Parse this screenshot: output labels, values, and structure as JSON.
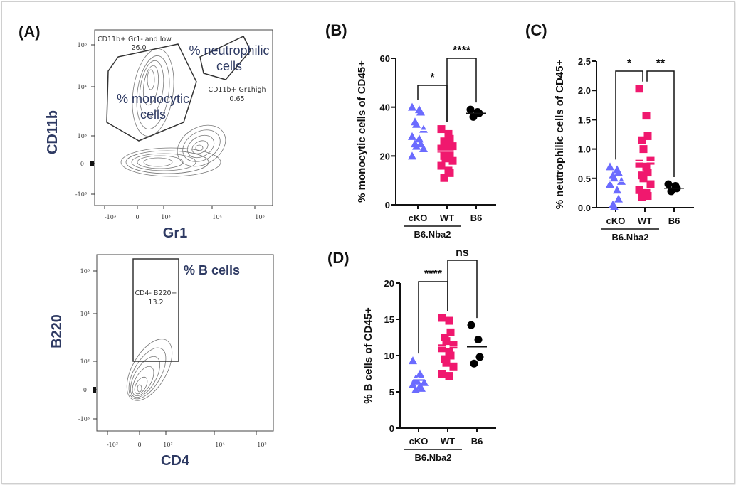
{
  "panels": {
    "A": "(A)",
    "B": "(B)",
    "C": "(C)",
    "D": "(D)"
  },
  "colors": {
    "cKO": "#6b6bff",
    "WT": "#f0186e",
    "B6": "#000000",
    "gate_text": "#2e3a63",
    "contour": "#777777"
  },
  "facs_plots": [
    {
      "id": "cd11b-gr1",
      "x_axis_title": "Gr1",
      "y_axis_title": "CD11b",
      "x_ticks": [
        "-10³",
        "0",
        "10³",
        "10⁴",
        "10⁵"
      ],
      "y_ticks": [
        "10⁵",
        "10⁴",
        "10³",
        "0",
        "-10³"
      ],
      "gates": [
        {
          "name": "CD11b+ Gr1- and low",
          "value": "26.0",
          "annotation": [
            "% monocytic",
            "cells"
          ]
        },
        {
          "name": "CD11b+ Gr1high",
          "value": "0.65",
          "annotation": [
            "% neutrophilic",
            "cells"
          ]
        }
      ]
    },
    {
      "id": "b220-cd4",
      "x_axis_title": "CD4",
      "y_axis_title": "B220",
      "x_ticks": [
        "-10³",
        "0",
        "10³",
        "10⁴",
        "10⁵"
      ],
      "y_ticks": [
        "10⁵",
        "10⁴",
        "10³",
        "0",
        "-10³"
      ],
      "gates": [
        {
          "name": "CD4- B220+",
          "value": "13.2",
          "annotation": [
            "% B cells"
          ]
        }
      ]
    }
  ],
  "chart_data": [
    {
      "panel": "B",
      "type": "scatter",
      "title": "",
      "xlabel": "",
      "ylabel": "% monocytic cells of CD45+",
      "categories": [
        "cKO",
        "WT",
        "B6"
      ],
      "group_label": "B6.Nba2",
      "group_members": [
        "cKO",
        "WT"
      ],
      "ylim": [
        0,
        60
      ],
      "yticks": [
        0,
        20,
        40,
        60
      ],
      "series": [
        {
          "name": "cKO",
          "marker": "triangle",
          "values": [
            40,
            39,
            38,
            34,
            33,
            31,
            28,
            27,
            25,
            25,
            24,
            23,
            20
          ],
          "mean": 30.5
        },
        {
          "name": "WT",
          "marker": "square",
          "values": [
            31,
            29,
            27,
            26,
            25,
            24,
            23,
            22,
            21,
            20,
            19,
            18,
            16,
            14,
            13,
            11
          ],
          "mean": 22
        },
        {
          "name": "B6",
          "marker": "circle",
          "values": [
            39,
            38,
            37.5,
            36
          ],
          "mean": 37.5
        }
      ],
      "comparisons": [
        {
          "from": "cKO",
          "to": "WT",
          "label": "*"
        },
        {
          "from": "WT",
          "to": "B6",
          "label": "****"
        }
      ]
    },
    {
      "panel": "C",
      "type": "scatter",
      "title": "",
      "xlabel": "",
      "ylabel": "% neutrophilic cells of CD45+",
      "categories": [
        "cKO",
        "WT",
        "B6"
      ],
      "group_label": "B6.Nba2",
      "group_members": [
        "cKO",
        "WT"
      ],
      "ylim": [
        0,
        2.5
      ],
      "yticks": [
        "0.0",
        "0.5",
        "1.0",
        "1.5",
        "2.0",
        "2.5"
      ],
      "series": [
        {
          "name": "cKO",
          "marker": "triangle",
          "values": [
            0.7,
            0.65,
            0.6,
            0.55,
            0.5,
            0.45,
            0.4,
            0.3,
            0.15,
            0.05,
            0.02
          ],
          "mean": 0.45
        },
        {
          "name": "WT",
          "marker": "square",
          "values": [
            2.03,
            1.57,
            1.22,
            1.15,
            1.0,
            0.8,
            0.75,
            0.7,
            0.6,
            0.55,
            0.5,
            0.4,
            0.3,
            0.25,
            0.2,
            0.18
          ],
          "mean": 0.78
        },
        {
          "name": "B6",
          "marker": "circle",
          "values": [
            0.4,
            0.37,
            0.33,
            0.28
          ],
          "mean": 0.33
        }
      ],
      "comparisons": [
        {
          "from": "cKO",
          "to": "WT",
          "label": "*"
        },
        {
          "from": "WT",
          "to": "B6",
          "label": "**"
        }
      ]
    },
    {
      "panel": "D",
      "type": "scatter",
      "title": "",
      "xlabel": "",
      "ylabel": "% B cells of CD45+",
      "categories": [
        "cKO",
        "WT",
        "B6"
      ],
      "group_label": "B6.Nba2",
      "group_members": [
        "cKO",
        "WT"
      ],
      "ylim": [
        0,
        20
      ],
      "yticks": [
        0,
        5,
        10,
        15,
        20
      ],
      "series": [
        {
          "name": "cKO",
          "marker": "triangle",
          "values": [
            9.3,
            7.5,
            7.0,
            6.8,
            6.5,
            6.3,
            6.0,
            5.8,
            5.5,
            5.3
          ],
          "mean": 6.8
        },
        {
          "name": "WT",
          "marker": "square",
          "values": [
            15.2,
            14.8,
            13.2,
            12.5,
            12.0,
            11.5,
            11.0,
            10.5,
            10.0,
            9.5,
            9.0,
            8.5,
            7.5,
            7.2
          ],
          "mean": 11.3
        },
        {
          "name": "B6",
          "marker": "circle",
          "values": [
            14.2,
            12.2,
            9.8,
            8.9
          ],
          "mean": 11.2
        }
      ],
      "comparisons": [
        {
          "from": "cKO",
          "to": "WT",
          "label": "****"
        },
        {
          "from": "WT",
          "to": "B6",
          "label": "ns"
        }
      ]
    }
  ]
}
